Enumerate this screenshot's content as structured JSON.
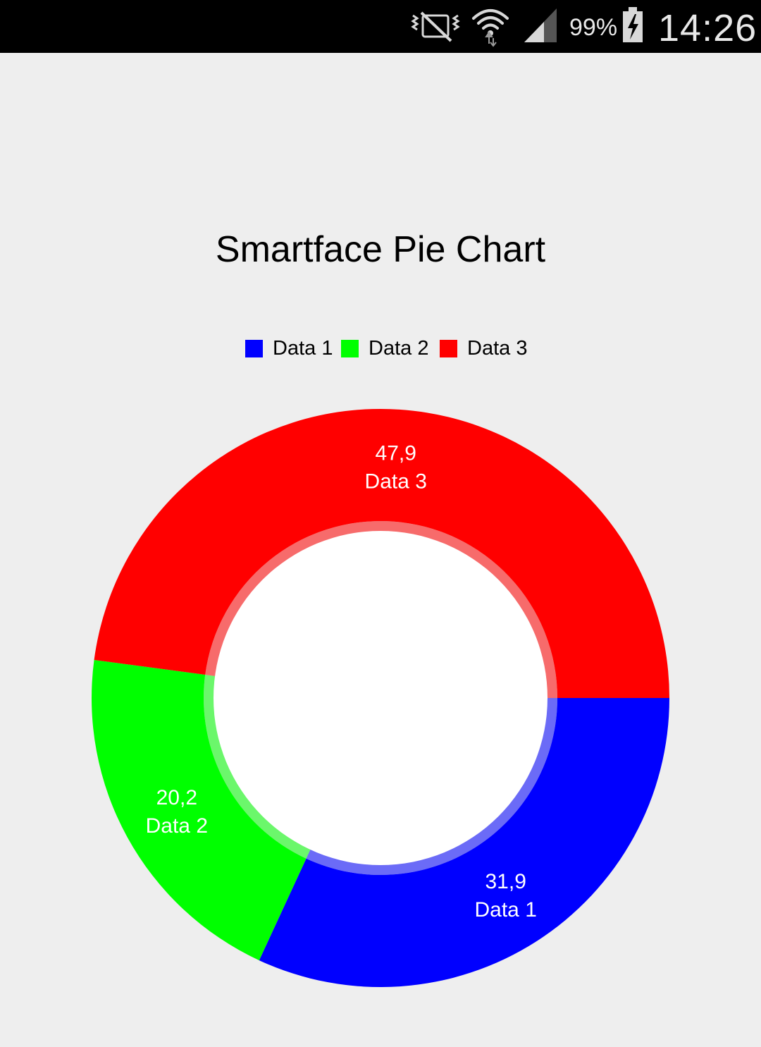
{
  "status_bar": {
    "battery_percent": "99%",
    "time": "14:26",
    "icons": [
      "vibrate-mute-icon",
      "wifi-icon",
      "signal-icon",
      "battery-charging-icon"
    ]
  },
  "chart_data": {
    "type": "pie",
    "title": "Smartface Pie Chart",
    "donut": true,
    "start_angle_deg": 0,
    "direction": "clockwise",
    "legend_position": "top-center",
    "slices": [
      {
        "name": "Data 1",
        "value": 31.9,
        "display": "31,9",
        "color": "#0000ff"
      },
      {
        "name": "Data 2",
        "value": 20.2,
        "display": "20,2",
        "color": "#00ff00"
      },
      {
        "name": "Data 3",
        "value": 47.9,
        "display": "47,9",
        "color": "#ff0000"
      }
    ],
    "hole_color": "#ffffff"
  }
}
